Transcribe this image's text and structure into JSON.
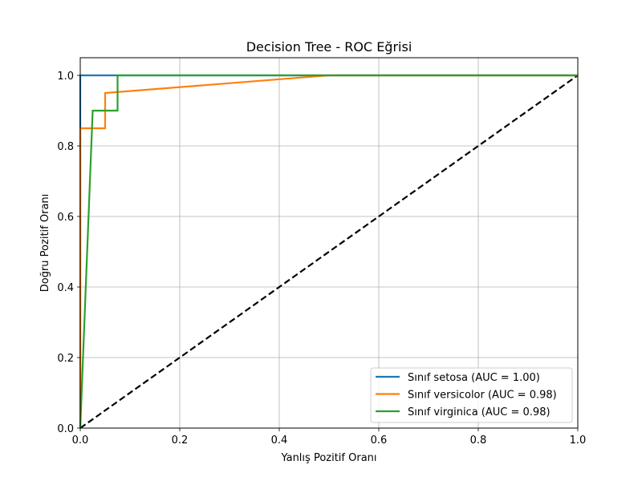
{
  "chart_data": {
    "type": "line",
    "title": "Decision Tree - ROC Eğrisi",
    "xlabel": "Yanlış Pozitif Oranı",
    "ylabel": "Doğru Pozitif Oranı",
    "xlim": [
      0.0,
      1.0
    ],
    "ylim": [
      0.0,
      1.05
    ],
    "grid": true,
    "legend_position": "lower-right",
    "xticks": [
      0.0,
      0.2,
      0.4,
      0.6,
      0.8,
      1.0
    ],
    "yticks": [
      0.0,
      0.2,
      0.4,
      0.6,
      0.8,
      1.0
    ],
    "xtick_labels": [
      "0.0",
      "0.2",
      "0.4",
      "0.6",
      "0.8",
      "1.0"
    ],
    "ytick_labels": [
      "0.0",
      "0.2",
      "0.4",
      "0.6",
      "0.8",
      "1.0"
    ],
    "series": [
      {
        "name": "Sınıf setosa (AUC = 1.00)",
        "color": "#1f77b4",
        "x": [
          0.0,
          0.0,
          1.0
        ],
        "y": [
          0.0,
          1.0,
          1.0
        ]
      },
      {
        "name": "Sınıf versicolor (AUC = 0.98)",
        "color": "#ff7f0e",
        "x": [
          0.0,
          0.0,
          0.05,
          0.05,
          0.5,
          1.0
        ],
        "y": [
          0.0,
          0.85,
          0.85,
          0.95,
          1.0,
          1.0
        ]
      },
      {
        "name": "Sınıf virginica (AUC = 0.98)",
        "color": "#2ca02c",
        "x": [
          0.0,
          0.025,
          0.075,
          0.075,
          1.0
        ],
        "y": [
          0.0,
          0.9,
          0.9,
          1.0,
          1.0
        ]
      }
    ],
    "reference_line": {
      "color": "#000000",
      "style": "dashed",
      "x": [
        0.0,
        1.0
      ],
      "y": [
        0.0,
        1.0
      ]
    }
  }
}
